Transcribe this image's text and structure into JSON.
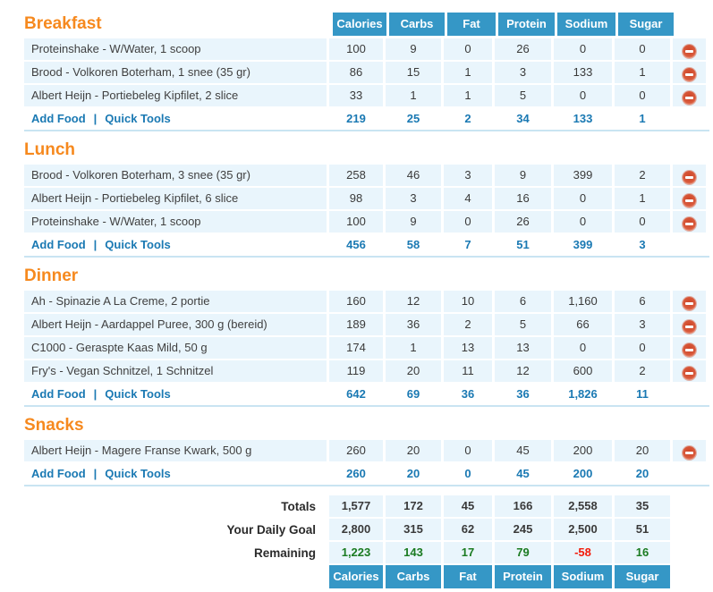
{
  "columns": [
    "Calories",
    "Carbs",
    "Fat",
    "Protein",
    "Sodium",
    "Sugar"
  ],
  "links": {
    "add_food": "Add Food",
    "separator": "|",
    "quick_tools": "Quick Tools"
  },
  "icons": {
    "delete": "delete-minus-circle-icon"
  },
  "meals": [
    {
      "title": "Breakfast",
      "foods": [
        {
          "name": "Proteinshake - W/Water, 1 scoop",
          "values": [
            "100",
            "9",
            "0",
            "26",
            "0",
            "0"
          ]
        },
        {
          "name": "Brood - Volkoren Boterham, 1 snee (35 gr)",
          "values": [
            "86",
            "15",
            "1",
            "3",
            "133",
            "1"
          ]
        },
        {
          "name": "Albert Heijn - Portiebeleg Kipfilet, 2 slice",
          "values": [
            "33",
            "1",
            "1",
            "5",
            "0",
            "0"
          ]
        }
      ],
      "totals": [
        "219",
        "25",
        "2",
        "34",
        "133",
        "1"
      ]
    },
    {
      "title": "Lunch",
      "foods": [
        {
          "name": "Brood - Volkoren Boterham, 3 snee (35 gr)",
          "values": [
            "258",
            "46",
            "3",
            "9",
            "399",
            "2"
          ]
        },
        {
          "name": "Albert Heijn - Portiebeleg Kipfilet, 6 slice",
          "values": [
            "98",
            "3",
            "4",
            "16",
            "0",
            "1"
          ]
        },
        {
          "name": "Proteinshake - W/Water, 1 scoop",
          "values": [
            "100",
            "9",
            "0",
            "26",
            "0",
            "0"
          ]
        }
      ],
      "totals": [
        "456",
        "58",
        "7",
        "51",
        "399",
        "3"
      ]
    },
    {
      "title": "Dinner",
      "foods": [
        {
          "name": "Ah - Spinazie A La Creme, 2 portie",
          "values": [
            "160",
            "12",
            "10",
            "6",
            "1,160",
            "6"
          ]
        },
        {
          "name": "Albert Heijn - Aardappel Puree, 300 g (bereid)",
          "values": [
            "189",
            "36",
            "2",
            "5",
            "66",
            "3"
          ]
        },
        {
          "name": "C1000 - Geraspte Kaas Mild, 50 g",
          "values": [
            "174",
            "1",
            "13",
            "13",
            "0",
            "0"
          ]
        },
        {
          "name": "Fry's - Vegan Schnitzel, 1 Schnitzel",
          "values": [
            "119",
            "20",
            "11",
            "12",
            "600",
            "2"
          ]
        }
      ],
      "totals": [
        "642",
        "69",
        "36",
        "36",
        "1,826",
        "11"
      ]
    },
    {
      "title": "Snacks",
      "foods": [
        {
          "name": "Albert Heijn - Magere Franse Kwark, 500 g",
          "values": [
            "260",
            "20",
            "0",
            "45",
            "200",
            "20"
          ]
        }
      ],
      "totals": [
        "260",
        "20",
        "0",
        "45",
        "200",
        "20"
      ]
    }
  ],
  "summary": {
    "rows": [
      {
        "label": "Totals",
        "values": [
          "1,577",
          "172",
          "45",
          "166",
          "2,558",
          "35"
        ],
        "value_styles": [
          "",
          "",
          "",
          "",
          "",
          ""
        ]
      },
      {
        "label": "Your Daily Goal",
        "values": [
          "2,800",
          "315",
          "62",
          "245",
          "2,500",
          "51"
        ],
        "value_styles": [
          "",
          "",
          "",
          "",
          "",
          ""
        ]
      },
      {
        "label": "Remaining",
        "values": [
          "1,223",
          "143",
          "17",
          "79",
          "-58",
          "16"
        ],
        "value_styles": [
          "positive",
          "positive",
          "positive",
          "positive",
          "negative",
          "positive"
        ]
      }
    ]
  },
  "colors": {
    "header_blue": "#3597C6",
    "link_blue": "#1A79B3",
    "section_orange": "#F6891E",
    "row_bg": "#E9F5FC",
    "divider": "#C9E4F2",
    "text_dark": "#3A3A3A",
    "positive_green": "#1B7B21",
    "negative_red": "#F21A0A"
  }
}
